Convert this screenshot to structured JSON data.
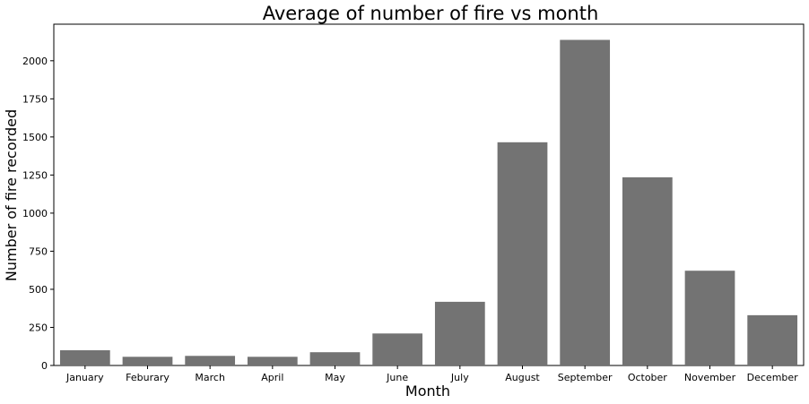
{
  "chart_data": {
    "type": "bar",
    "title": "Average of number of fire vs month",
    "xlabel": "Month",
    "ylabel": "Number of fire recorded",
    "categories": [
      "January",
      "Feburary",
      "March",
      "April",
      "May",
      "June",
      "July",
      "August",
      "September",
      "October",
      "November",
      "December"
    ],
    "values": [
      100,
      57,
      63,
      57,
      87,
      210,
      418,
      1465,
      2137,
      1235,
      622,
      330
    ],
    "ylim": [
      0,
      2240
    ],
    "yticks": [
      0,
      250,
      500,
      750,
      1000,
      1250,
      1500,
      1750,
      2000
    ],
    "ytick_labels": [
      "0",
      "250",
      "500",
      "750",
      "1000",
      "1250",
      "1500",
      "1750",
      "2000"
    ],
    "grid": false,
    "legend": "none",
    "bar_color": "#737373"
  }
}
